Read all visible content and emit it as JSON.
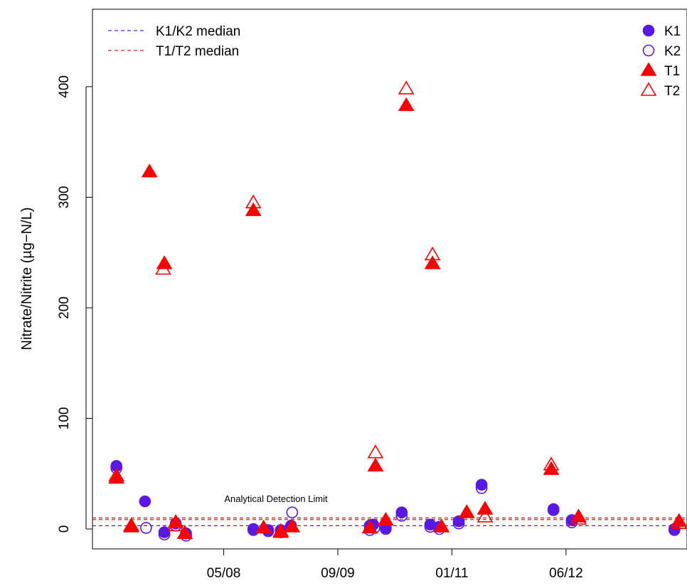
{
  "chart_data": {
    "type": "scatter",
    "ylabel": "Nitrate/Nitrite (µg−N/L)",
    "xlabel": "",
    "x_ticks": [
      {
        "label": "05/08",
        "x": 200
      },
      {
        "label": "09/09",
        "x": 300
      },
      {
        "label": "01/11",
        "x": 400
      },
      {
        "label": "06/12",
        "x": 500
      }
    ],
    "xlim": [
      85,
      606
    ],
    "ylim": [
      -18,
      470
    ],
    "y_ticks": [
      0,
      100,
      200,
      300,
      400
    ],
    "legend_position": "top-right",
    "annotation": "Analytical Detection Limit",
    "series": [
      {
        "name": "K1",
        "marker": "filled-circle",
        "color": "#5a18e8",
        "points": [
          [
            106,
            57
          ],
          [
            131,
            25
          ],
          [
            148,
            -3
          ],
          [
            158,
            5
          ],
          [
            167,
            -4
          ],
          [
            226,
            0
          ],
          [
            239,
            -1
          ],
          [
            250,
            -1
          ],
          [
            259,
            3
          ],
          [
            328,
            3
          ],
          [
            331,
            4
          ],
          [
            342,
            1
          ],
          [
            356,
            15
          ],
          [
            381,
            4
          ],
          [
            389,
            2
          ],
          [
            406,
            7
          ],
          [
            426,
            40
          ],
          [
            489,
            18
          ],
          [
            505,
            8
          ],
          [
            595,
            0
          ]
        ]
      },
      {
        "name": "K2",
        "marker": "open-circle",
        "color": "#5a18e8",
        "points": [
          [
            106,
            55
          ],
          [
            132,
            1
          ],
          [
            148,
            -5
          ],
          [
            158,
            3
          ],
          [
            167,
            -6
          ],
          [
            226,
            -1
          ],
          [
            239,
            -2
          ],
          [
            250,
            -3
          ],
          [
            260,
            15
          ],
          [
            328,
            -1
          ],
          [
            332,
            1
          ],
          [
            342,
            0
          ],
          [
            356,
            12
          ],
          [
            381,
            2
          ],
          [
            389,
            0
          ],
          [
            406,
            5
          ],
          [
            426,
            37
          ],
          [
            489,
            17
          ],
          [
            505,
            6
          ],
          [
            595,
            -1
          ]
        ]
      },
      {
        "name": "T1",
        "marker": "filled-triangle",
        "color": "#ff0000",
        "points": [
          [
            106,
            46
          ],
          [
            119,
            2
          ],
          [
            135,
            323
          ],
          [
            148,
            240
          ],
          [
            158,
            6
          ],
          [
            166,
            -4
          ],
          [
            226,
            288
          ],
          [
            235,
            1
          ],
          [
            250,
            -3
          ],
          [
            260,
            2
          ],
          [
            328,
            1
          ],
          [
            333,
            57
          ],
          [
            342,
            8
          ],
          [
            360,
            383
          ],
          [
            383,
            240
          ],
          [
            391,
            2
          ],
          [
            413,
            15
          ],
          [
            429,
            18
          ],
          [
            487,
            54
          ],
          [
            511,
            11
          ],
          [
            599,
            7
          ]
        ]
      },
      {
        "name": "T2",
        "marker": "open-triangle",
        "color": "#ff0000",
        "points": [
          [
            106,
            48
          ],
          [
            119,
            3
          ],
          [
            147,
            235
          ],
          [
            158,
            3
          ],
          [
            226,
            295
          ],
          [
            250,
            -2
          ],
          [
            333,
            69
          ],
          [
            360,
            398
          ],
          [
            383,
            248
          ],
          [
            429,
            11
          ],
          [
            487,
            58
          ],
          [
            511,
            9
          ],
          [
            599,
            5
          ]
        ]
      }
    ],
    "reference_lines": [
      {
        "name": "K1/K2 median",
        "y": 3,
        "color": "#5a18e8",
        "style": "dashed"
      },
      {
        "name": "T1/T2 median",
        "y": 10,
        "color": "#d42020",
        "style": "dashed"
      },
      {
        "name": "T1/T2 median",
        "y": 8.5,
        "color": "#d42020",
        "style": "dashed"
      }
    ]
  }
}
